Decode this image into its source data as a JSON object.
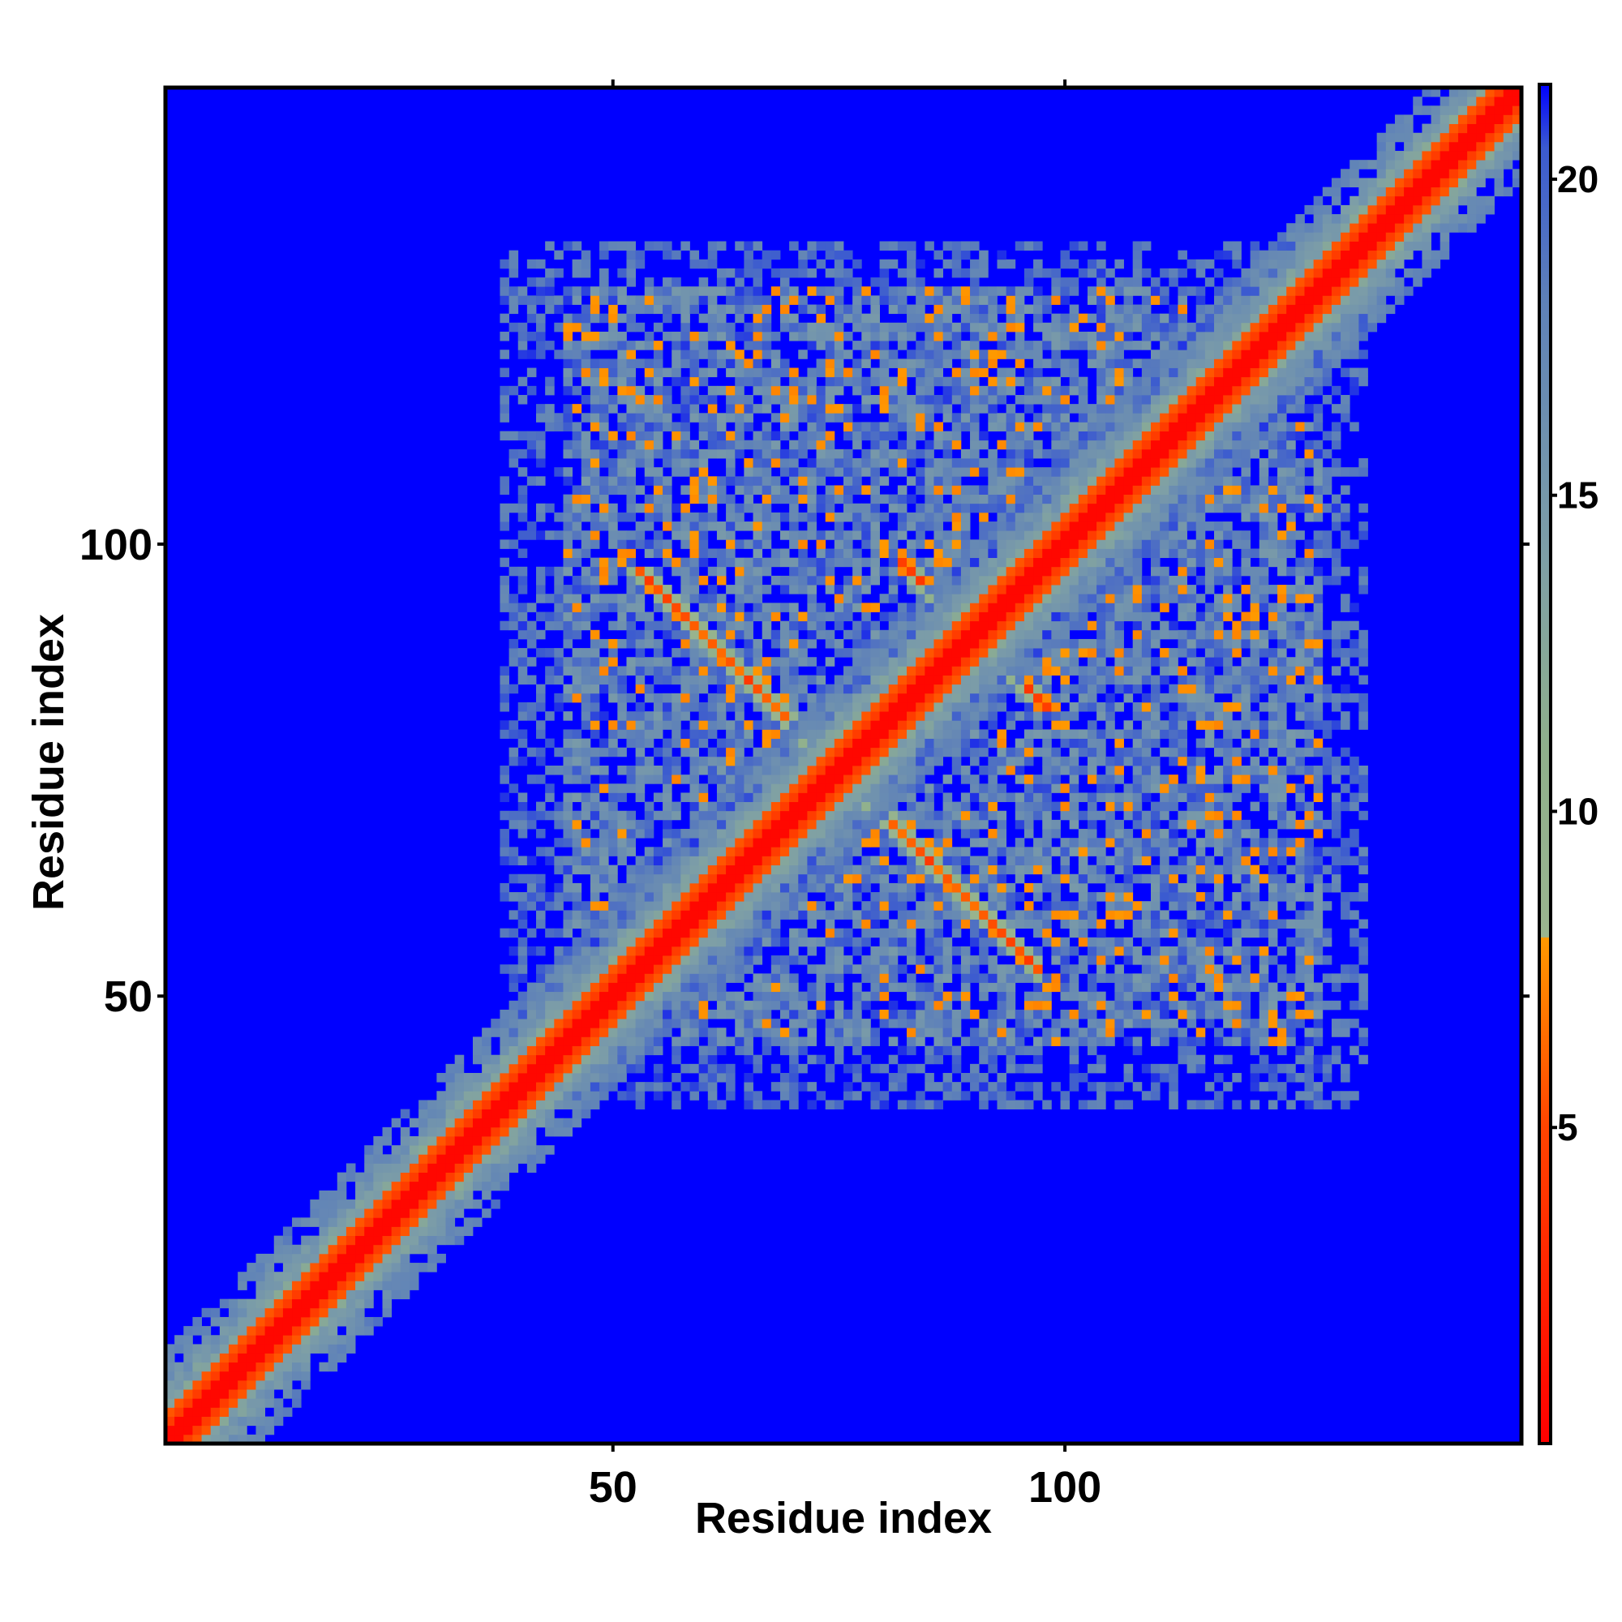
{
  "chart_data": {
    "type": "heatmap",
    "title": "",
    "xlabel": "Residue index",
    "ylabel": "Residue index",
    "x_range": [
      1,
      150
    ],
    "y_range": [
      1,
      150
    ],
    "xticks": [
      50,
      100
    ],
    "yticks": [
      50,
      100
    ],
    "colorbar": {
      "range": [
        0,
        21.5
      ],
      "ticks": [
        5,
        10,
        15,
        20
      ],
      "stops": [
        {
          "value": 0,
          "color": "#ff0000"
        },
        {
          "value": 5,
          "color": "#ff4400"
        },
        {
          "value": 8,
          "color": "#ff9900"
        },
        {
          "value": 8.01,
          "color": "#9ab58f"
        },
        {
          "value": 11,
          "color": "#8fb08c"
        },
        {
          "value": 14,
          "color": "#7e9fa6"
        },
        {
          "value": 18,
          "color": "#5f82b8"
        },
        {
          "value": 20.5,
          "color": "#3b5ad0"
        },
        {
          "value": 21.5,
          "color": "#0000ff"
        }
      ],
      "background_color": "#0000ff"
    },
    "description_values": {
      "diagonal_distance": 0,
      "cutoff_distance": 20
    }
  }
}
